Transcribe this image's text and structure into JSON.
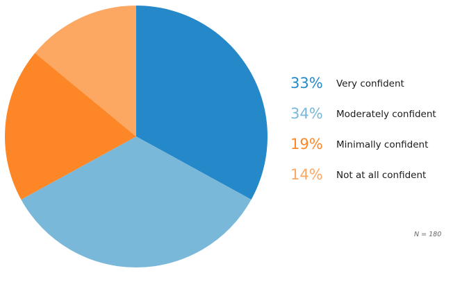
{
  "chart_data": {
    "type": "pie",
    "start_angle_deg": 0,
    "direction": "clockwise",
    "slices": [
      {
        "label": "Very confident",
        "value": 33,
        "value_label": "33%",
        "color": "#2589c9"
      },
      {
        "label": "Moderately confident",
        "value": 34,
        "value_label": "34%",
        "color": "#7ab8da"
      },
      {
        "label": "Minimally confident",
        "value": 19,
        "value_label": "19%",
        "color": "#fd8726"
      },
      {
        "label": "Not at all confident",
        "value": 14,
        "value_label": "14%",
        "color": "#fca762"
      }
    ],
    "legend_position": "right",
    "note": "N = 180"
  }
}
